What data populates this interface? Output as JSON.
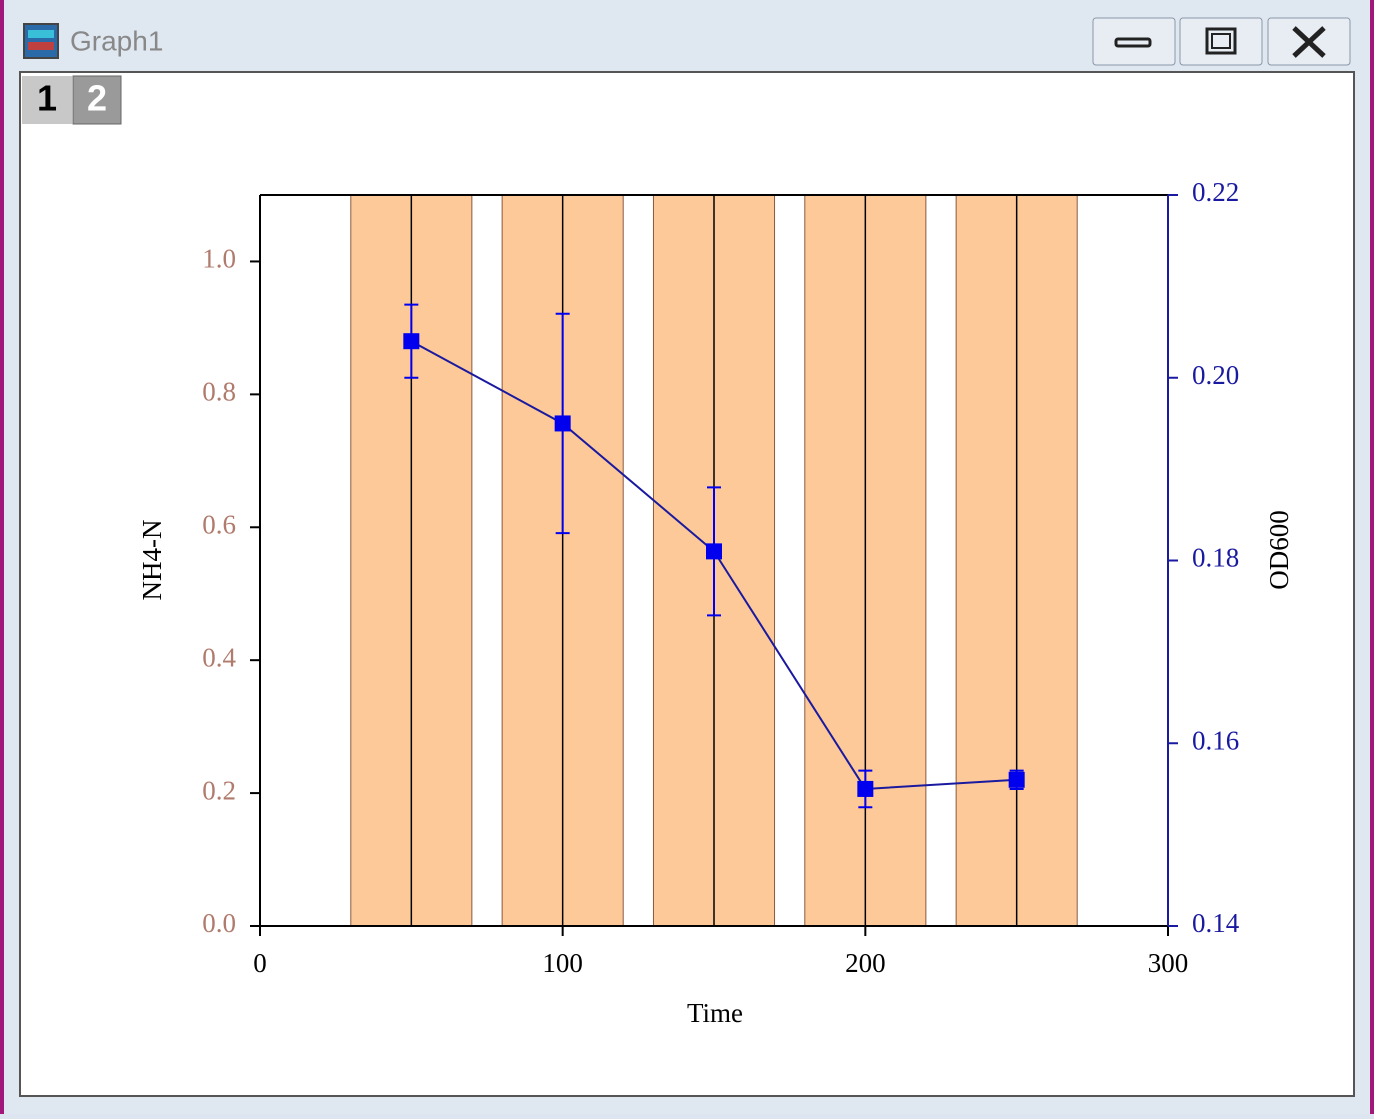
{
  "window": {
    "title": "Graph1",
    "layers": [
      "1",
      "2"
    ]
  },
  "chart_data": {
    "type": "combo",
    "xlabel": "Time",
    "ylabel": "NH4-N",
    "y2label": "OD600",
    "xlim": [
      0,
      300
    ],
    "xticks": [
      0,
      100,
      200,
      300
    ],
    "ylim": [
      0,
      1.1
    ],
    "yticks": [
      {
        "value": 0,
        "label": "0.0"
      },
      0.2,
      0.4,
      0.6,
      0.8,
      {
        "value": 1,
        "label": "1.0"
      }
    ],
    "y2lim": [
      0.14,
      0.22
    ],
    "y2ticks": [
      0.14,
      0.16,
      0.18,
      {
        "value": 0.2,
        "label": "0.20"
      },
      0.22
    ],
    "series": [
      {
        "type": "bar",
        "color": "#fdc998",
        "x": [
          50,
          100,
          150,
          200,
          250
        ],
        "values": [
          1.1,
          1.1,
          1.1,
          1.1,
          1.1
        ]
      },
      {
        "type": "line",
        "axis": "y2",
        "color": "#0000ee",
        "x": [
          50,
          100,
          150,
          200,
          250
        ],
        "values": [
          0.204,
          0.195,
          0.181,
          0.155,
          0.156
        ],
        "errors": [
          0.004,
          0.012,
          0.007,
          0.002,
          0.001
        ]
      }
    ]
  }
}
